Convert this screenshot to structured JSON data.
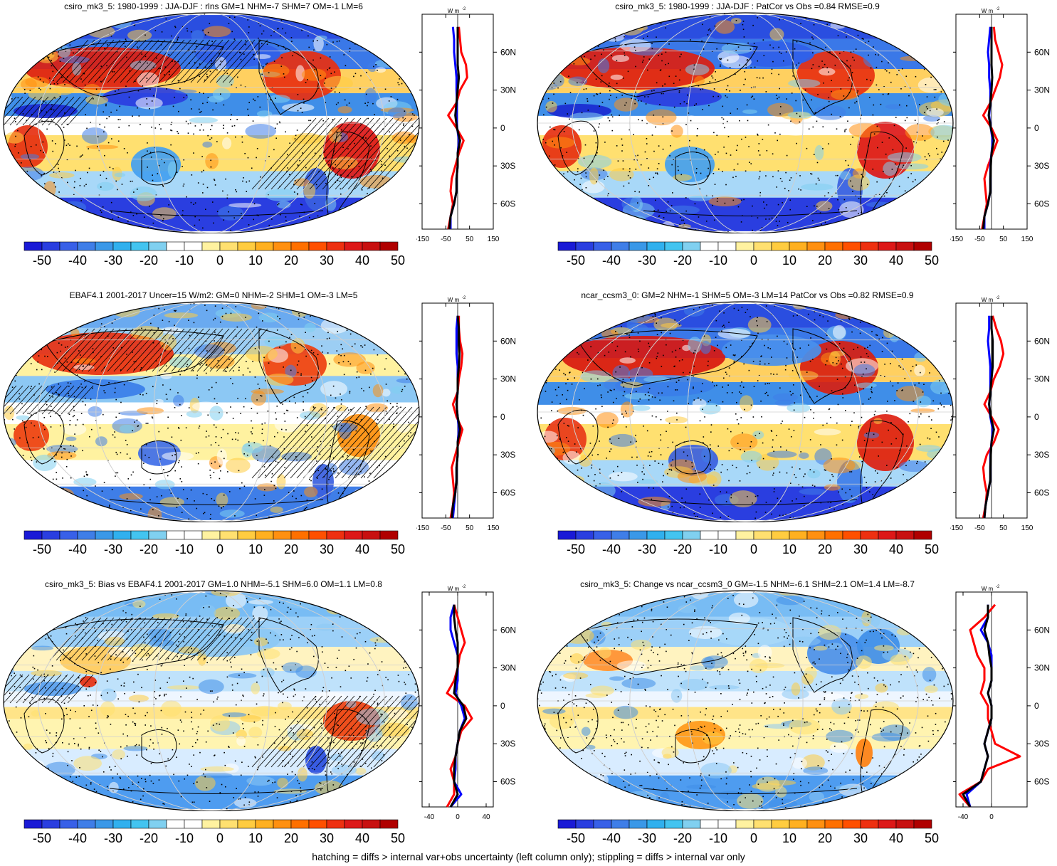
{
  "panels": [
    {
      "id": "p1",
      "title": "csiro_mk3_5: 1980-1999 : JJA-DJF : rlns GM=1 NHM=-7 SHM=7 OM=-1 LM=6",
      "xticks": [
        "-150",
        "-50",
        "50",
        "150"
      ],
      "xlim": [
        -150,
        150
      ],
      "hatch": true,
      "variant": "model"
    },
    {
      "id": "p2",
      "title": "csiro_mk3_5: 1980-1999 : JJA-DJF : PatCor vs Obs =0.84 RMSE=0.9",
      "xticks": [
        "-150",
        "-50",
        "50",
        "150"
      ],
      "xlim": [
        -150,
        150
      ],
      "hatch": false,
      "variant": "model"
    },
    {
      "id": "p3",
      "title": "EBAF4.1 2001-2017 Uncer=15 W/m2: GM=0 NHM=-2 SHM=1 OM=-3 LM=5",
      "xticks": [
        "-150",
        "-50",
        "50",
        "150"
      ],
      "xlim": [
        -150,
        150
      ],
      "hatch": true,
      "variant": "obs"
    },
    {
      "id": "p4",
      "title": "ncar_ccsm3_0: GM=2 NHM=-1 SHM=5 OM=-3 LM=14 PatCor vs Obs =0.82 RMSE=0.9",
      "xticks": [
        "-150",
        "-50",
        "50",
        "150"
      ],
      "xlim": [
        -150,
        150
      ],
      "hatch": false,
      "variant": "model2"
    },
    {
      "id": "p5",
      "title": "csiro_mk3_5: Bias vs EBAF4.1 2001-2017 GM=1.0 NHM=-5.1 SHM=6.0 OM=1.1 LM=0.8",
      "xticks": [
        "-40",
        "0",
        "40"
      ],
      "xlim": [
        -50,
        50
      ],
      "hatch": true,
      "variant": "diff"
    },
    {
      "id": "p6",
      "title": "csiro_mk3_5: Change vs ncar_ccsm3_0 GM=-1.5 NHM=-6.1 SHM=2.1 OM=1.4 LM=-8.7",
      "xticks": [
        "-40",
        "0"
      ],
      "xlim": [
        -50,
        50
      ],
      "hatch": false,
      "variant": "diff2"
    }
  ],
  "profile_unit": "W m",
  "profile_unit_exp": "-2",
  "lat_labels": [
    "60N",
    "30N",
    "0",
    "30S",
    "60S"
  ],
  "colorbar": {
    "labels": [
      "-50",
      "-40",
      "-30",
      "-20",
      "-10",
      "0",
      "10",
      "20",
      "30",
      "40",
      "50"
    ],
    "colors": [
      "#1a1ad6",
      "#2a3ee0",
      "#3860e8",
      "#3f7ee8",
      "#3a98e8",
      "#30b0ee",
      "#43c4f0",
      "#80d0f0",
      "#ffffff",
      "#ffffff",
      "#fff2a0",
      "#ffe070",
      "#ffcc40",
      "#ffb020",
      "#ff9010",
      "#ff7000",
      "#ff5000",
      "#ee3010",
      "#dd1818",
      "#c81010",
      "#b00000"
    ]
  },
  "footer": "hatching = diffs > internal var+obs uncertainty (left column only); stippling = diffs > internal var only",
  "chart_data": {
    "type": "heatmap",
    "variable": "rlns",
    "season": "JJA-DJF",
    "colorbar_range": [
      -55,
      55
    ],
    "profile_series_colors": [
      "#ff0000",
      "#0000ff",
      "#000000"
    ],
    "lat_ticks": [
      60,
      30,
      0,
      -30,
      -60
    ],
    "profiles": {
      "lat": [
        80,
        70,
        60,
        50,
        40,
        30,
        20,
        10,
        0,
        -10,
        -20,
        -30,
        -40,
        -50,
        -60,
        -70,
        -80
      ],
      "p1": {
        "red": [
          5,
          10,
          15,
          35,
          40,
          10,
          -5,
          -40,
          -5,
          25,
          5,
          -10,
          -25,
          -30,
          -20,
          -30,
          -40
        ],
        "blue": [
          -20,
          -15,
          -15,
          -10,
          -5,
          -5,
          -3,
          -5,
          -2,
          5,
          0,
          0,
          -5,
          -5,
          -15,
          -30,
          -30
        ],
        "black": [
          0,
          0,
          0,
          0,
          5,
          0,
          -5,
          -10,
          -3,
          10,
          0,
          0,
          -5,
          -5,
          -15,
          -30,
          -35
        ]
      },
      "p2": {
        "red": [
          10,
          15,
          30,
          45,
          35,
          15,
          -5,
          -35,
          0,
          25,
          5,
          -15,
          -30,
          -25,
          -20,
          -30,
          -40
        ],
        "blue": [
          -5,
          -10,
          -15,
          -10,
          -10,
          -5,
          -5,
          -10,
          -3,
          5,
          0,
          -5,
          -5,
          -5,
          -15,
          -30,
          -30
        ],
        "black": [
          0,
          0,
          0,
          0,
          3,
          0,
          -5,
          -12,
          -3,
          10,
          0,
          -3,
          -5,
          -5,
          -15,
          -30,
          -35
        ]
      },
      "p3": {
        "red": [
          5,
          5,
          10,
          20,
          15,
          5,
          0,
          -20,
          -5,
          20,
          5,
          -10,
          -25,
          -20,
          -15,
          -20,
          -30
        ],
        "blue": [
          0,
          -5,
          -5,
          -5,
          0,
          0,
          0,
          -5,
          0,
          5,
          0,
          0,
          -5,
          -5,
          -10,
          -15,
          -20
        ],
        "black": [
          0,
          5,
          5,
          8,
          5,
          0,
          0,
          -5,
          0,
          10,
          0,
          0,
          -5,
          -5,
          -10,
          -20,
          -25
        ]
      },
      "p4": {
        "red": [
          5,
          20,
          40,
          50,
          35,
          10,
          -5,
          -30,
          0,
          30,
          10,
          -20,
          -35,
          -30,
          -20,
          -25,
          -35
        ],
        "blue": [
          -10,
          -10,
          -15,
          -10,
          -5,
          -5,
          -5,
          -10,
          -5,
          5,
          0,
          -5,
          -5,
          -5,
          -15,
          -25,
          -30
        ],
        "black": [
          0,
          0,
          5,
          5,
          5,
          0,
          -5,
          -10,
          -3,
          10,
          0,
          -3,
          -5,
          -5,
          -15,
          -25,
          -30
        ]
      },
      "p5": {
        "red": [
          -5,
          0,
          5,
          10,
          3,
          0,
          -5,
          -15,
          10,
          20,
          5,
          0,
          -3,
          -10,
          -5,
          -5,
          -15
        ],
        "blue": [
          -5,
          -10,
          -10,
          -5,
          0,
          0,
          0,
          -3,
          5,
          10,
          3,
          0,
          -3,
          -3,
          -5,
          5,
          -10
        ],
        "black": [
          -5,
          -5,
          -3,
          0,
          0,
          0,
          -3,
          -5,
          8,
          12,
          3,
          0,
          -3,
          -5,
          -5,
          0,
          -10
        ]
      },
      "p6": {
        "red": [
          5,
          -10,
          -30,
          -25,
          -20,
          -10,
          -10,
          -15,
          -5,
          -5,
          0,
          5,
          40,
          -5,
          -15,
          -45,
          -30
        ],
        "blue": [
          -5,
          -5,
          -15,
          -5,
          0,
          0,
          0,
          -5,
          0,
          0,
          -5,
          -10,
          -5,
          -10,
          -15,
          -35,
          -30
        ],
        "black": [
          -5,
          -5,
          -10,
          -5,
          -3,
          0,
          0,
          -5,
          0,
          0,
          -5,
          -10,
          -5,
          -10,
          -15,
          -40,
          -30
        ]
      }
    }
  }
}
